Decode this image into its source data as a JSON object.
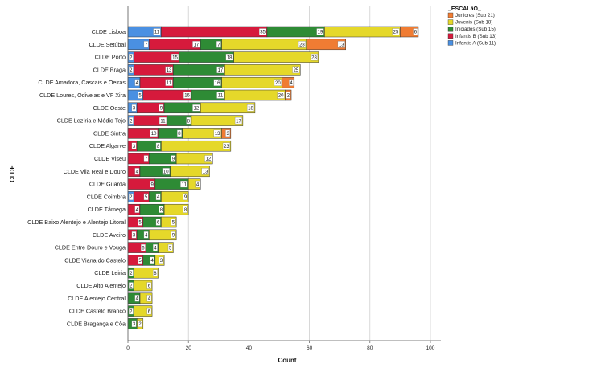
{
  "chart_data": {
    "type": "bar",
    "orientation": "horizontal",
    "stacked": true,
    "xlabel": "Count",
    "ylabel": "CLDE",
    "xlim": [
      0,
      100
    ],
    "xticks": [
      0,
      20,
      40,
      60,
      80,
      100
    ],
    "grid": "vertical",
    "legend_position": "top-right",
    "legend_title": "_ESCALãO_",
    "legend": [
      {
        "name": "Juniores (Sub 21)",
        "color": "#f07c33"
      },
      {
        "name": "Juvenis (Sub 18)",
        "color": "#e5d82a"
      },
      {
        "name": "Iniciados (Sub 15)",
        "color": "#2e8b35"
      },
      {
        "name": "Infantis B (Sub 13)",
        "color": "#d61a3c"
      },
      {
        "name": "Infantis A (Sub 11)",
        "color": "#4a90e2"
      }
    ],
    "stack_order": [
      "Infantis A (Sub 11)",
      "Infantis B (Sub 13)",
      "Iniciados (Sub 15)",
      "Juvenis (Sub 18)",
      "Juniores (Sub 21)"
    ],
    "categories": [
      {
        "label": "CLDE Lisboa",
        "segments": [
          11,
          35,
          19,
          25,
          6
        ]
      },
      {
        "label": "CLDE Setúbal",
        "segments": [
          7,
          17,
          7,
          28,
          13
        ]
      },
      {
        "label": "CLDE Porto",
        "segments": [
          2,
          15,
          18,
          28,
          0
        ]
      },
      {
        "label": "CLDE Braga",
        "segments": [
          2,
          13,
          17,
          25,
          0
        ]
      },
      {
        "label": "CLDE Amadora, Cascais e Oeiras",
        "segments": [
          4,
          11,
          16,
          20,
          4
        ]
      },
      {
        "label": "CLDE Loures, Odivelas e VF Xira",
        "segments": [
          5,
          16,
          11,
          20,
          2
        ]
      },
      {
        "label": "CLDE Oeste",
        "segments": [
          3,
          9,
          12,
          18,
          0
        ]
      },
      {
        "label": "CLDE Lezíria e Médio Tejo",
        "segments": [
          2,
          11,
          8,
          17,
          0
        ]
      },
      {
        "label": "CLDE Sintra",
        "segments": [
          0,
          10,
          8,
          13,
          3
        ]
      },
      {
        "label": "CLDE Algarve",
        "segments": [
          0,
          3,
          8,
          23,
          0
        ]
      },
      {
        "label": "CLDE Viseu",
        "segments": [
          0,
          7,
          9,
          12,
          0
        ]
      },
      {
        "label": "CLDE Vila Real e Douro",
        "segments": [
          0,
          4,
          10,
          13,
          0
        ]
      },
      {
        "label": "CLDE Guarda",
        "segments": [
          0,
          9,
          11,
          4,
          0
        ]
      },
      {
        "label": "CLDE Coimbra",
        "segments": [
          2,
          5,
          4,
          9,
          0
        ]
      },
      {
        "label": "CLDE Tâmega",
        "segments": [
          0,
          4,
          8,
          8,
          0
        ]
      },
      {
        "label": "CLDE Baixo Alentejo e Alentejo Litoral",
        "segments": [
          0,
          5,
          6,
          5,
          0
        ]
      },
      {
        "label": "CLDE Aveiro",
        "segments": [
          0,
          3,
          4,
          9,
          0
        ]
      },
      {
        "label": "CLDE Entre Douro e Vouga",
        "segments": [
          0,
          6,
          4,
          5,
          0
        ]
      },
      {
        "label": "CLDE Viana do Castelo",
        "segments": [
          0,
          5,
          4,
          3,
          0
        ]
      },
      {
        "label": "CLDE Leiria",
        "segments": [
          0,
          0,
          2,
          8,
          0
        ]
      },
      {
        "label": "CLDE Alto Alentejo",
        "segments": [
          0,
          0,
          2,
          6,
          0
        ]
      },
      {
        "label": "CLDE Alentejo Central",
        "segments": [
          0,
          0,
          4,
          4,
          0
        ]
      },
      {
        "label": "CLDE Castelo Branco",
        "segments": [
          0,
          0,
          2,
          6,
          0
        ]
      },
      {
        "label": "CLDE Bragança e Côa",
        "segments": [
          0,
          0,
          3,
          2,
          0
        ]
      }
    ]
  }
}
